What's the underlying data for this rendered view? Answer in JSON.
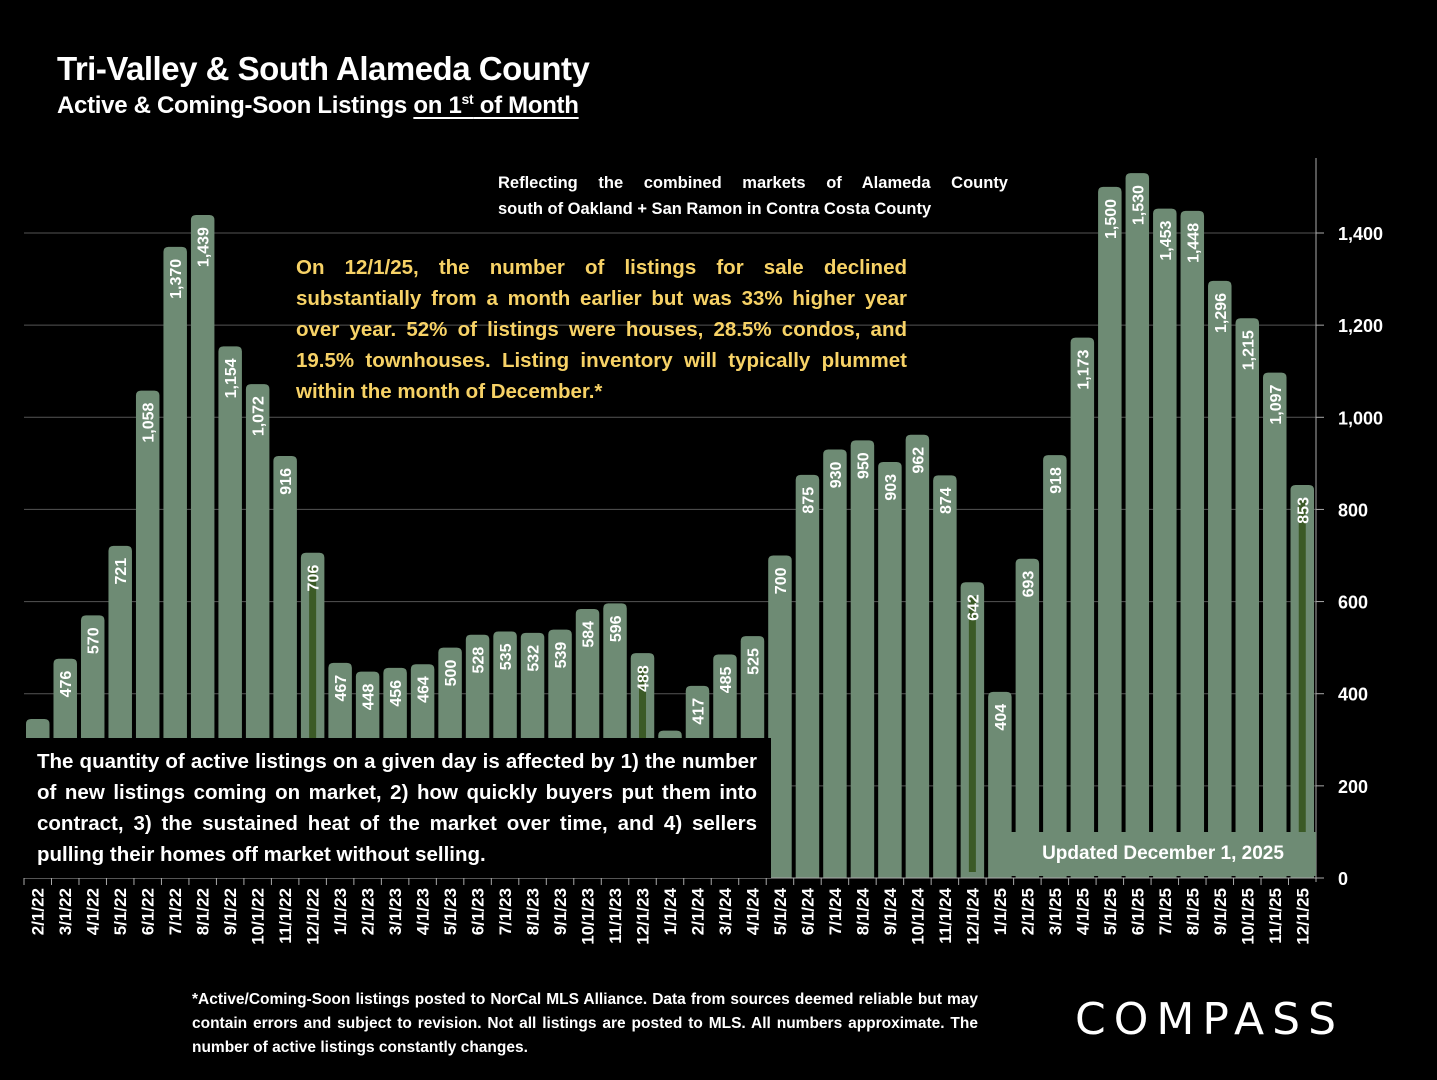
{
  "header": {
    "title": "Tri-Valley & South Alameda County",
    "subtitle_prefix": "Active & Coming-Soon Listings ",
    "subtitle_underlined_a": "on 1",
    "subtitle_sup": "st",
    "subtitle_underlined_b": " of Month"
  },
  "notes": {
    "market_line1": "Reflecting the combined markets of Alameda County",
    "market_line2": "south of Oakland + San Ramon in Contra Costa County",
    "commentary": "On 12/1/25, the number of listings for sale declined substantially from a month earlier but was 33% higher year over year. 52% of listings were houses, 28.5% condos, and 19.5% townhouses. Listing inventory will typically plummet within the month of December.*",
    "explanation": "The quantity of active listings on a given day is affected by 1) the number of new listings coming on market, 2) how quickly buyers put them into contract, 3) the sustained heat of the market over time, and 4) sellers pulling their homes off market without selling.",
    "updated": "Updated December 1, 2025",
    "footnote": "*Active/Coming-Soon listings posted to NorCal MLS Alliance.  Data from sources deemed reliable but may contain errors and subject to revision.  Not all listings are posted to MLS. All numbers approximate. The number of active listings constantly changes."
  },
  "brand": {
    "logo_text": "COMPASS"
  },
  "colors": {
    "bar": "#6e8b74",
    "december_highlight": "#3b5a26",
    "grid": "#555555",
    "commentary": "#f7d266",
    "background": "#000000"
  },
  "chart_data": {
    "type": "bar",
    "title": "Tri-Valley & South Alameda County — Active & Coming-Soon Listings on 1st of Month",
    "xlabel": "",
    "ylabel": "",
    "ylim": [
      0,
      1560
    ],
    "yticks": [
      0,
      200,
      400,
      600,
      800,
      1000,
      1200,
      1400
    ],
    "ytick_labels": [
      "0",
      "200",
      "400",
      "600",
      "800",
      "1,000",
      "1,200",
      "1,400"
    ],
    "grid": true,
    "y_axis_side": "right",
    "categories": [
      "2/1/22",
      "3/1/22",
      "4/1/22",
      "5/1/22",
      "6/1/22",
      "7/1/22",
      "8/1/22",
      "9/1/22",
      "10/1/22",
      "11/1/22",
      "12/1/22",
      "1/1/23",
      "2/1/23",
      "3/1/23",
      "4/1/23",
      "5/1/23",
      "6/1/23",
      "7/1/23",
      "8/1/23",
      "9/1/23",
      "10/1/23",
      "11/1/23",
      "12/1/23",
      "1/1/24",
      "2/1/24",
      "3/1/24",
      "4/1/24",
      "5/1/24",
      "6/1/24",
      "7/1/24",
      "8/1/24",
      "9/1/24",
      "10/1/24",
      "11/1/24",
      "12/1/24",
      "1/1/25",
      "2/1/25",
      "3/1/25",
      "4/1/25",
      "5/1/25",
      "6/1/25",
      "7/1/25",
      "8/1/25",
      "9/1/25",
      "10/1/25",
      "11/1/25",
      "12/1/25"
    ],
    "values": [
      345,
      476,
      570,
      721,
      1058,
      1370,
      1439,
      1154,
      1072,
      916,
      706,
      467,
      448,
      456,
      464,
      500,
      528,
      535,
      532,
      539,
      584,
      596,
      488,
      320,
      417,
      485,
      525,
      700,
      875,
      930,
      950,
      903,
      962,
      874,
      642,
      404,
      693,
      918,
      1173,
      1500,
      1530,
      1453,
      1448,
      1296,
      1215,
      1097,
      853
    ],
    "labels": [
      "",
      "476",
      "570",
      "721",
      "1,058",
      "1,370",
      "1,439",
      "1,154",
      "1,072",
      "916",
      "706",
      "467",
      "448",
      "456",
      "464",
      "500",
      "528",
      "535",
      "532",
      "539",
      "584",
      "596",
      "488",
      "",
      "417",
      "485",
      "525",
      "700",
      "875",
      "930",
      "950",
      "903",
      "962",
      "874",
      "642",
      "404",
      "693",
      "918",
      "1,173",
      "1,500",
      "1,530",
      "1,453",
      "1,448",
      "1,296",
      "1,215",
      "1,097",
      "853"
    ],
    "highlighted": [
      "12/1/22",
      "12/1/23",
      "12/1/24",
      "12/1/25"
    ]
  }
}
